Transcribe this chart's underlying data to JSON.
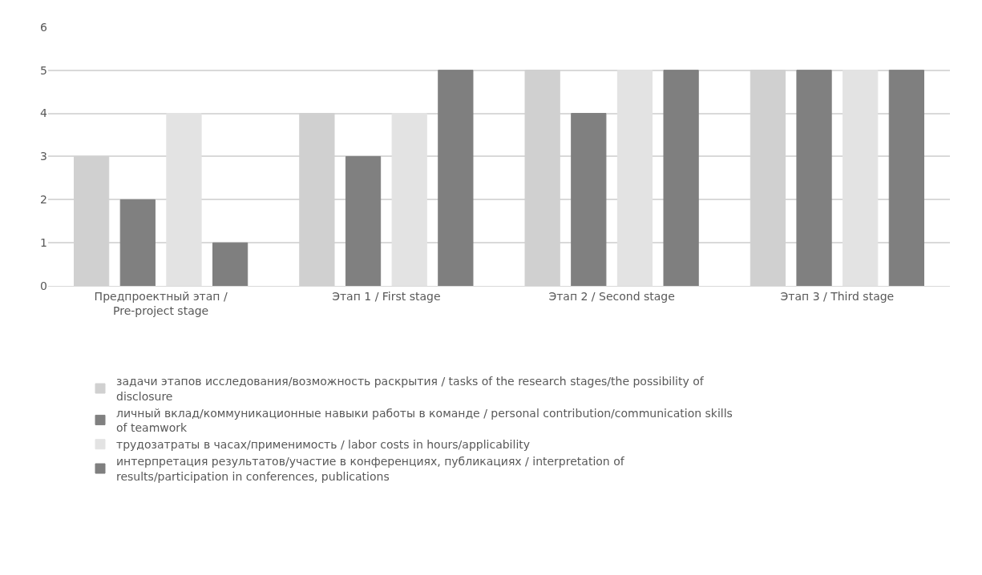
{
  "chart_data": {
    "type": "bar",
    "categories": [
      "Предпроектный этап / Pre-project stage",
      "Этап 1 / First stage",
      "Этап 2 / Second stage",
      "Этап 3 / Third stage"
    ],
    "series": [
      {
        "name": "задачи этапов исследования/возможность раскрытия / tasks of the research stages/the possibility of disclosure",
        "color": "#d0d0d0",
        "values": [
          3,
          4,
          5,
          5
        ]
      },
      {
        "name": "личный вклад/коммуникационные навыки работы в команде / personal contribution/communication skills of teamwork",
        "color": "#808080",
        "values": [
          2,
          3,
          4,
          5
        ]
      },
      {
        "name": "трудозатраты в часах/применимость / labor costs in hours/applicability",
        "color": "#e3e3e3",
        "values": [
          4,
          4,
          5,
          5
        ]
      },
      {
        "name": "интерпретация результатов/участие в конференциях, публикациях / interpretation of results/participation in conferences, publications",
        "color": "#7f7f7f",
        "values": [
          1,
          5,
          5,
          5
        ]
      }
    ],
    "ylim": [
      0,
      6
    ],
    "yticks": [
      0,
      1,
      2,
      3,
      4,
      5,
      6
    ],
    "grid": "y",
    "legend": "bottom"
  }
}
